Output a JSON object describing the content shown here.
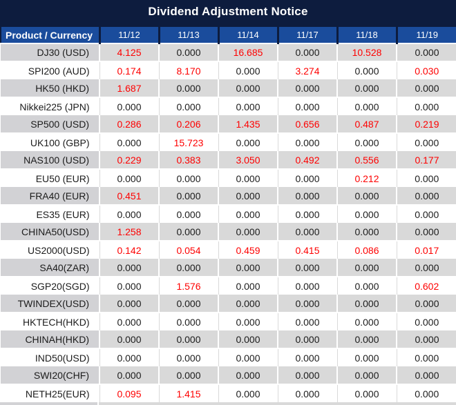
{
  "title": "Dividend Adjustment Notice",
  "chart_data": {
    "type": "table",
    "title": "Dividend Adjustment Notice",
    "header": {
      "product_label": "Product / Currency",
      "dates": [
        "11/12",
        "11/13",
        "11/14",
        "11/17",
        "11/18",
        "11/19"
      ]
    },
    "rows": [
      {
        "product": "DJ30 (USD)",
        "values": [
          "4.125",
          "0.000",
          "16.685",
          "0.000",
          "10.528",
          "0.000"
        ]
      },
      {
        "product": "SPI200 (AUD)",
        "values": [
          "0.174",
          "8.170",
          "0.000",
          "3.274",
          "0.000",
          "0.030"
        ]
      },
      {
        "product": "HK50 (HKD)",
        "values": [
          "1.687",
          "0.000",
          "0.000",
          "0.000",
          "0.000",
          "0.000"
        ]
      },
      {
        "product": "Nikkei225 (JPN)",
        "values": [
          "0.000",
          "0.000",
          "0.000",
          "0.000",
          "0.000",
          "0.000"
        ]
      },
      {
        "product": "SP500 (USD)",
        "values": [
          "0.286",
          "0.206",
          "1.435",
          "0.656",
          "0.487",
          "0.219"
        ]
      },
      {
        "product": "UK100 (GBP)",
        "values": [
          "0.000",
          "15.723",
          "0.000",
          "0.000",
          "0.000",
          "0.000"
        ]
      },
      {
        "product": "NAS100 (USD)",
        "values": [
          "0.229",
          "0.383",
          "3.050",
          "0.492",
          "0.556",
          "0.177"
        ]
      },
      {
        "product": "EU50 (EUR)",
        "values": [
          "0.000",
          "0.000",
          "0.000",
          "0.000",
          "0.212",
          "0.000"
        ]
      },
      {
        "product": "FRA40 (EUR)",
        "values": [
          "0.451",
          "0.000",
          "0.000",
          "0.000",
          "0.000",
          "0.000"
        ]
      },
      {
        "product": "ES35 (EUR)",
        "values": [
          "0.000",
          "0.000",
          "0.000",
          "0.000",
          "0.000",
          "0.000"
        ]
      },
      {
        "product": "CHINA50(USD)",
        "values": [
          "1.258",
          "0.000",
          "0.000",
          "0.000",
          "0.000",
          "0.000"
        ]
      },
      {
        "product": "US2000(USD)",
        "values": [
          "0.142",
          "0.054",
          "0.459",
          "0.415",
          "0.086",
          "0.017"
        ]
      },
      {
        "product": "SA40(ZAR)",
        "values": [
          "0.000",
          "0.000",
          "0.000",
          "0.000",
          "0.000",
          "0.000"
        ]
      },
      {
        "product": "SGP20(SGD)",
        "values": [
          "0.000",
          "1.576",
          "0.000",
          "0.000",
          "0.000",
          "0.602"
        ]
      },
      {
        "product": "TWINDEX(USD)",
        "values": [
          "0.000",
          "0.000",
          "0.000",
          "0.000",
          "0.000",
          "0.000"
        ]
      },
      {
        "product": "HKTECH(HKD)",
        "values": [
          "0.000",
          "0.000",
          "0.000",
          "0.000",
          "0.000",
          "0.000"
        ]
      },
      {
        "product": "CHINAH(HKD)",
        "values": [
          "0.000",
          "0.000",
          "0.000",
          "0.000",
          "0.000",
          "0.000"
        ]
      },
      {
        "product": "IND50(USD)",
        "values": [
          "0.000",
          "0.000",
          "0.000",
          "0.000",
          "0.000",
          "0.000"
        ]
      },
      {
        "product": "SWI20(CHF)",
        "values": [
          "0.000",
          "0.000",
          "0.000",
          "0.000",
          "0.000",
          "0.000"
        ]
      },
      {
        "product": "NETH25(EUR)",
        "values": [
          "0.095",
          "1.415",
          "0.000",
          "0.000",
          "0.000",
          "0.000"
        ]
      }
    ],
    "layout": {
      "zero_value": "0.000",
      "nonzero_style": "red",
      "row_striping": "gray-white alternating, first row gray"
    }
  },
  "colors": {
    "navy": "#0d1c3e",
    "blue": "#1a4c9c",
    "gray": "#d9d9d9",
    "gray_dark": "#d2d2d5",
    "red": "#fe0000",
    "ink": "#1b1b1b"
  }
}
